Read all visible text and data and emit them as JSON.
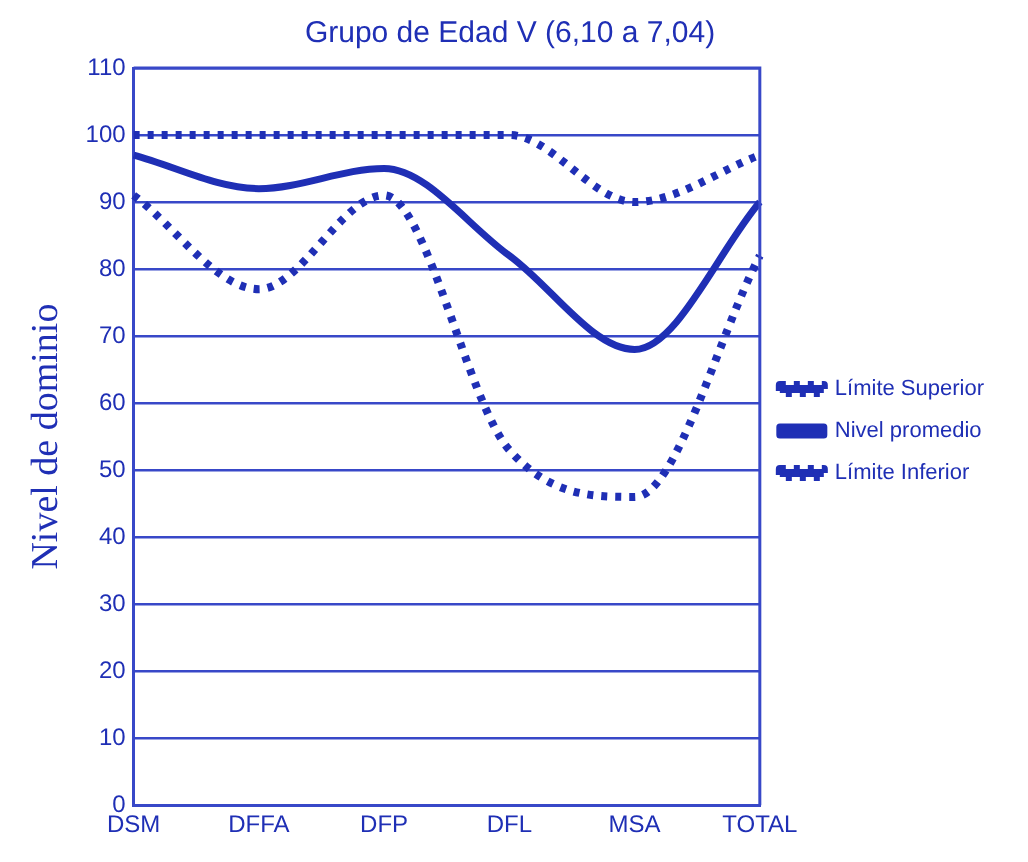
{
  "chart_data": {
    "type": "line",
    "title": "Grupo de Edad V (6,10 a 7,04)",
    "ylabel": "Nivel de dominio",
    "categories": [
      "DSM",
      "DFFA",
      "DFP",
      "DFL",
      "MSA",
      "TOTAL"
    ],
    "series": [
      {
        "name": "Límite Superior",
        "color": "#1f2fb5",
        "line_style": "dotted",
        "values": [
          100,
          100,
          100,
          100,
          90,
          97
        ]
      },
      {
        "name": "Nivel promedio",
        "color": "#1f2fb5",
        "line_style": "solid",
        "values": [
          97,
          92,
          95,
          82,
          68,
          90
        ]
      },
      {
        "name": "Límite Inferior",
        "color": "#1f2fb5",
        "line_style": "dotted",
        "values": [
          91,
          77,
          91,
          53,
          46,
          82
        ]
      }
    ],
    "ylim": [
      0,
      110
    ],
    "yticks": [
      0,
      10,
      20,
      30,
      40,
      50,
      60,
      70,
      80,
      90,
      100,
      110
    ],
    "grid": "y",
    "legend": "right",
    "marker": "none"
  }
}
